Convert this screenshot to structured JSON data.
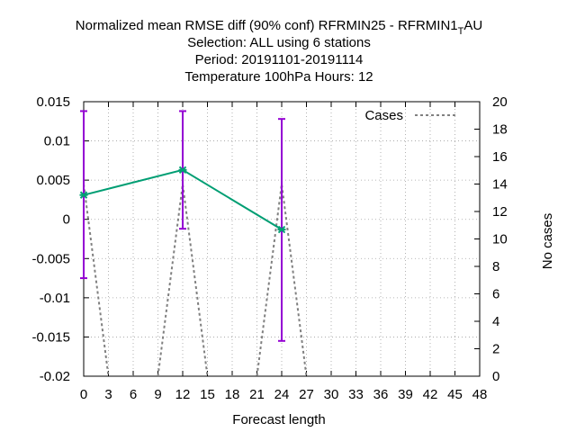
{
  "chart_data": {
    "type": "line",
    "title_lines": [
      "Normalized mean RMSE diff (90% conf) RFRMIN25 - RFRMIN1",
      "Selection: ALL using     6 stations",
      "Period: 20191101-20191114",
      "Temperature 100hPa   Hours:  12"
    ],
    "title_sub": "T",
    "title_tail": "AU",
    "xlabel": "Forecast length",
    "ylabel": "",
    "y2label": "No cases",
    "xlim": [
      0,
      48
    ],
    "ylim": [
      -0.02,
      0.015
    ],
    "y2lim": [
      0,
      20
    ],
    "xticks": [
      0,
      3,
      6,
      9,
      12,
      15,
      18,
      21,
      24,
      27,
      30,
      33,
      36,
      39,
      42,
      45,
      48
    ],
    "yticks": [
      "0.015",
      "0.01",
      "0.005",
      "0",
      "-0.005",
      "-0.01",
      "-0.015",
      "-0.02"
    ],
    "y2ticks": [
      0,
      2,
      4,
      6,
      8,
      10,
      12,
      14,
      16,
      18,
      20
    ],
    "grid": true,
    "legend_position": "top-right",
    "series": [
      {
        "axis": "y",
        "color": "#009e73",
        "x": [
          0,
          12,
          24
        ],
        "y": [
          0.0031,
          0.0063,
          -0.0013
        ]
      }
    ],
    "errorbars": {
      "color": "#9400d3",
      "x": [
        0,
        12,
        24
      ],
      "low": [
        -0.0075,
        -0.0012,
        -0.0155
      ],
      "high": [
        0.0138,
        0.0138,
        0.0128
      ]
    },
    "cases": {
      "name": "Cases",
      "axis": "y2",
      "color": "#808080",
      "style": "dashed",
      "x": [
        0,
        3,
        9,
        12,
        15,
        21,
        24,
        27,
        48
      ],
      "y": [
        14,
        0,
        0,
        14,
        0,
        0,
        14,
        0,
        0
      ]
    }
  }
}
